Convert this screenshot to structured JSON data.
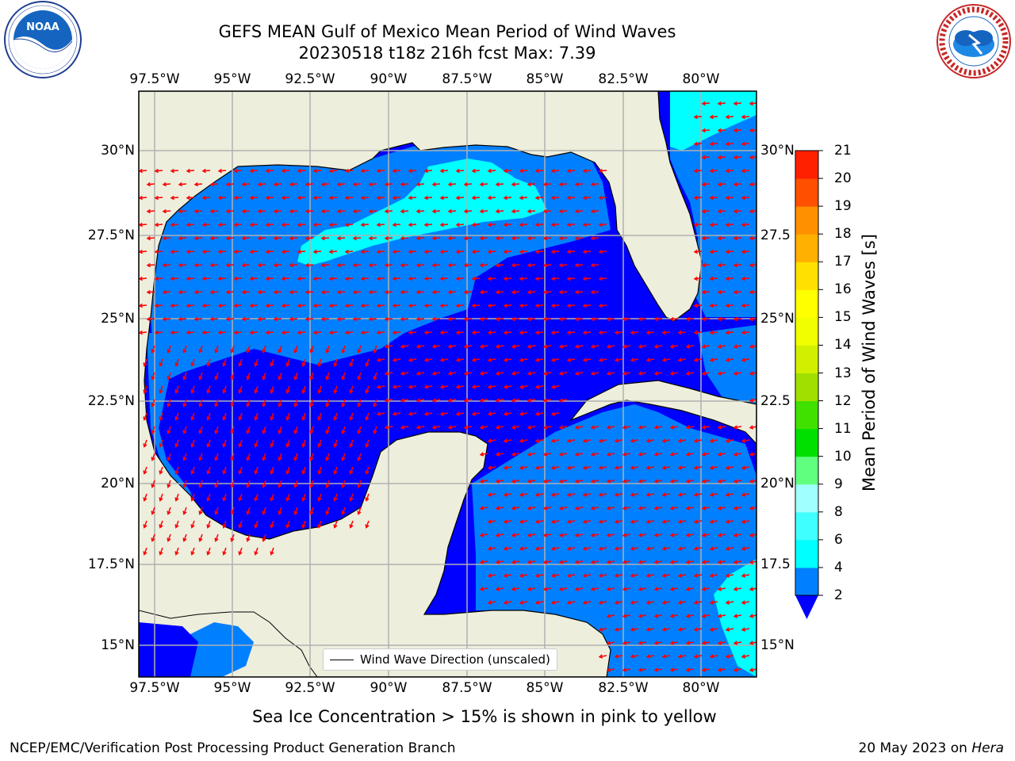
{
  "header": {
    "title_line1": "GEFS MEAN Gulf of Mexico Mean Period of Wind Waves",
    "title_line2": "20230518 t18z 216h fcst   Max: 7.39"
  },
  "logos": {
    "noaa_text": "NOAA",
    "noaa_ring_text": "NATIONAL OCEANIC AND ATMOSPHERIC ADMINISTRATION · U.S. DEPARTMENT OF COMMERCE",
    "nws_ring_text": "NATIONAL WEATHER SERVICE"
  },
  "map": {
    "lon_labels": [
      "97.5°W",
      "95°W",
      "92.5°W",
      "90°W",
      "87.5°W",
      "85°W",
      "82.5°W",
      "80°W"
    ],
    "lat_labels_left": [
      "30°N",
      "27.5°N",
      "25°N",
      "22.5°N",
      "20°N",
      "17.5°N",
      "15°N"
    ],
    "lat_labels_right": [
      "30°N",
      "27.5",
      "25°N",
      "22.5",
      "20°N",
      "17.5",
      "15°N"
    ],
    "legend_label": "Wind Wave Direction (unscaled)",
    "colors": {
      "land": "#eeeedd",
      "band_0_2": "#0000ff",
      "band_2_4": "#0080ff",
      "band_4_6": "#00ffff",
      "arrow": "#ff0000",
      "grid": "#b0b0b0"
    }
  },
  "colorbar": {
    "label": "Mean Period of Wind Waves [s]",
    "ticks": [
      "2",
      "4",
      "6",
      "8",
      "9",
      "10",
      "11",
      "12",
      "13",
      "14",
      "15",
      "16",
      "17",
      "18",
      "19",
      "20",
      "21"
    ],
    "colors": [
      "#0080ff",
      "#00ffff",
      "#40ffff",
      "#a0ffff",
      "#60ff80",
      "#00e000",
      "#40e000",
      "#a0e000",
      "#d0f000",
      "#f0ff00",
      "#ffff00",
      "#ffe000",
      "#ffb000",
      "#ff9000",
      "#ff5000",
      "#ff2000",
      "#ff0000"
    ],
    "extend_color": "#0000ff"
  },
  "notes": {
    "ice_note": "Sea Ice Concentration > 15% is shown in pink to yellow",
    "credit": "NCEP/EMC/Verification Post Processing Product Generation Branch",
    "date": "20 May 2023 on ",
    "machine": "Hera"
  }
}
